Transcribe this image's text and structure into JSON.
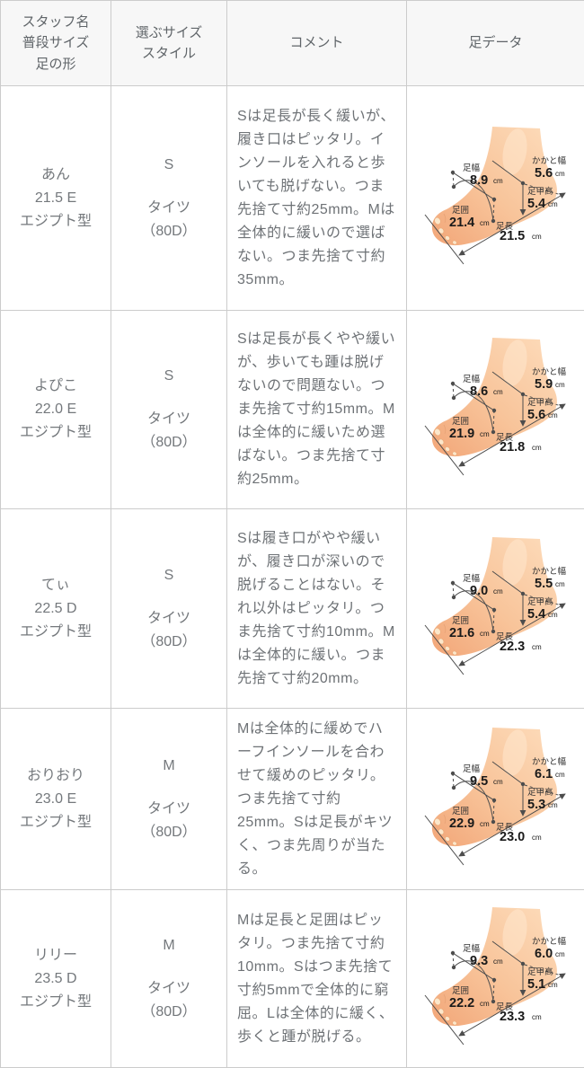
{
  "columns": [
    {
      "label": "スタッフ名\n普段サイズ\n足の形"
    },
    {
      "label": "選ぶサイズ\nスタイル"
    },
    {
      "label": "コメント"
    },
    {
      "label": "足データ"
    }
  ],
  "foot_labels": {
    "width": "足幅",
    "girth": "足囲",
    "heel": "かかと幅",
    "instep": "足甲高",
    "length": "足長",
    "unit": "cm"
  },
  "rows": [
    {
      "name": "あん",
      "usual_size": "21.5 E",
      "foot_shape": "エジプト型",
      "size": "S",
      "style": "タイツ\n（80D）",
      "comment": "Sは足長が長く緩いが、履き口はピッタリ。インソールを入れると歩いても脱げない。つま先捨て寸約25mm。Mは全体的に緩いので選ばない。つま先捨て寸約35mm。",
      "foot": {
        "width": "8.9",
        "girth": "21.4",
        "heel": "5.6",
        "instep": "5.4",
        "length": "21.5"
      }
    },
    {
      "name": "よぴこ",
      "usual_size": "22.0 E",
      "foot_shape": "エジプト型",
      "size": "S",
      "style": "タイツ\n（80D）",
      "comment": "Sは足長が長くやや緩いが、歩いても踵は脱げないので問題ない。つま先捨て寸約15mm。Mは全体的に緩いため選ばない。つま先捨て寸約25mm。",
      "foot": {
        "width": "8.6",
        "girth": "21.9",
        "heel": "5.9",
        "instep": "5.6",
        "length": "21.8"
      }
    },
    {
      "name": "てぃ",
      "usual_size": "22.5 D",
      "foot_shape": "エジプト型",
      "size": "S",
      "style": "タイツ\n（80D）",
      "comment": "Sは履き口がやや緩いが、履き口が深いので脱げることはない。それ以外はピッタリ。つま先捨て寸約10mm。Mは全体的に緩い。つま先捨て寸約20mm。",
      "foot": {
        "width": "9.0",
        "girth": "21.6",
        "heel": "5.5",
        "instep": "5.4",
        "length": "22.3"
      }
    },
    {
      "name": "おりおり",
      "usual_size": "23.0 E",
      "foot_shape": "エジプト型",
      "size": "M",
      "style": "タイツ\n（80D）",
      "comment": "Mは全体的に緩めでハーフインソールを合わせて緩めのピッタリ。つま先捨て寸約25mm。Sは足長がキツく、つま先周りが当たる。",
      "foot": {
        "width": "9.5",
        "girth": "22.9",
        "heel": "6.1",
        "instep": "5.3",
        "length": "23.0"
      }
    },
    {
      "name": "リリー",
      "usual_size": "23.5 D",
      "foot_shape": "エジプト型",
      "size": "M",
      "style": "タイツ\n（80D）",
      "comment": "Mは足長と足囲はピッタリ。つま先捨て寸約10mm。Sはつま先捨て寸約5mmで全体的に窮屈。Lは全体的に緩く、歩くと踵が脱げる。",
      "foot": {
        "width": "9.3",
        "girth": "22.2",
        "heel": "6.0",
        "instep": "5.1",
        "length": "23.3"
      }
    }
  ]
}
